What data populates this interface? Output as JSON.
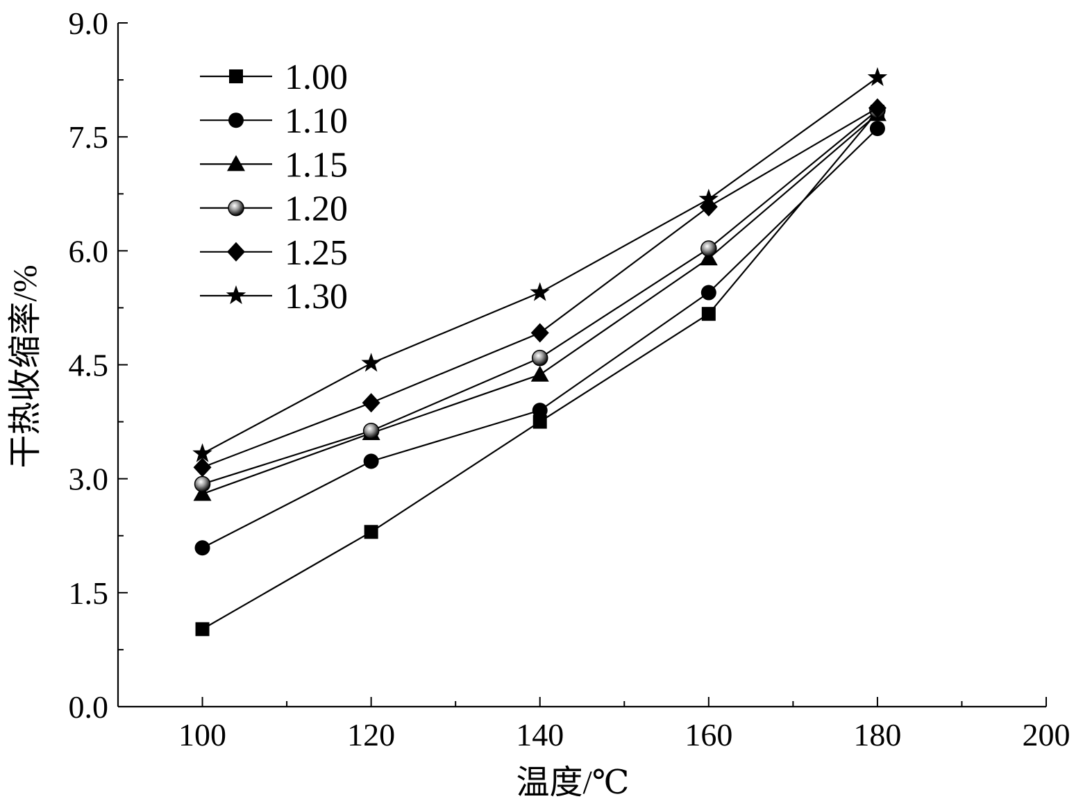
{
  "chart_data": {
    "type": "line",
    "xlabel": "温度/℃",
    "ylabel": "干热收缩率/%",
    "xlim": [
      90,
      200
    ],
    "ylim": [
      0,
      9
    ],
    "xticks": [
      "100",
      "120",
      "140",
      "160",
      "180",
      "200"
    ],
    "yticks": [
      "0.0",
      "1.5",
      "3.0",
      "4.5",
      "6.0",
      "7.5",
      "9.0"
    ],
    "grid": false,
    "legend_position": "top-left",
    "x": [
      100,
      120,
      140,
      160,
      180
    ],
    "series": [
      {
        "name": "1.00",
        "marker": "square",
        "values": [
          1.02,
          2.3,
          3.75,
          5.17,
          7.83
        ]
      },
      {
        "name": "1.10",
        "marker": "circle",
        "values": [
          2.09,
          3.23,
          3.9,
          5.45,
          7.61
        ]
      },
      {
        "name": "1.15",
        "marker": "triangle",
        "values": [
          2.8,
          3.6,
          4.37,
          5.9,
          7.8
        ]
      },
      {
        "name": "1.20",
        "marker": "shaded-circle",
        "values": [
          2.93,
          3.63,
          4.59,
          6.03,
          7.85
        ]
      },
      {
        "name": "1.25",
        "marker": "diamond",
        "values": [
          3.15,
          4.0,
          4.92,
          6.58,
          7.88
        ]
      },
      {
        "name": "1.30",
        "marker": "star",
        "values": [
          3.33,
          4.52,
          5.45,
          6.68,
          8.28
        ]
      }
    ]
  }
}
